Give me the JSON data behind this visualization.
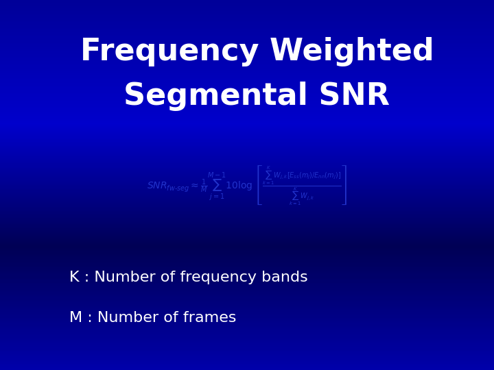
{
  "title_line1": "Frequency Weighted",
  "title_line2": "Segmental SNR",
  "title_color": "#FFFFFF",
  "title_fontsize": 32,
  "bg_color_top": "#000080",
  "bg_color_bottom": "#0000CC",
  "label1": "K : Number of frequency bands",
  "label2": "M : Number of frames",
  "label_color": "#FFFFFF",
  "label_fontsize": 16,
  "formula_color": "#1a1aaa",
  "formula_fontsize": 13
}
